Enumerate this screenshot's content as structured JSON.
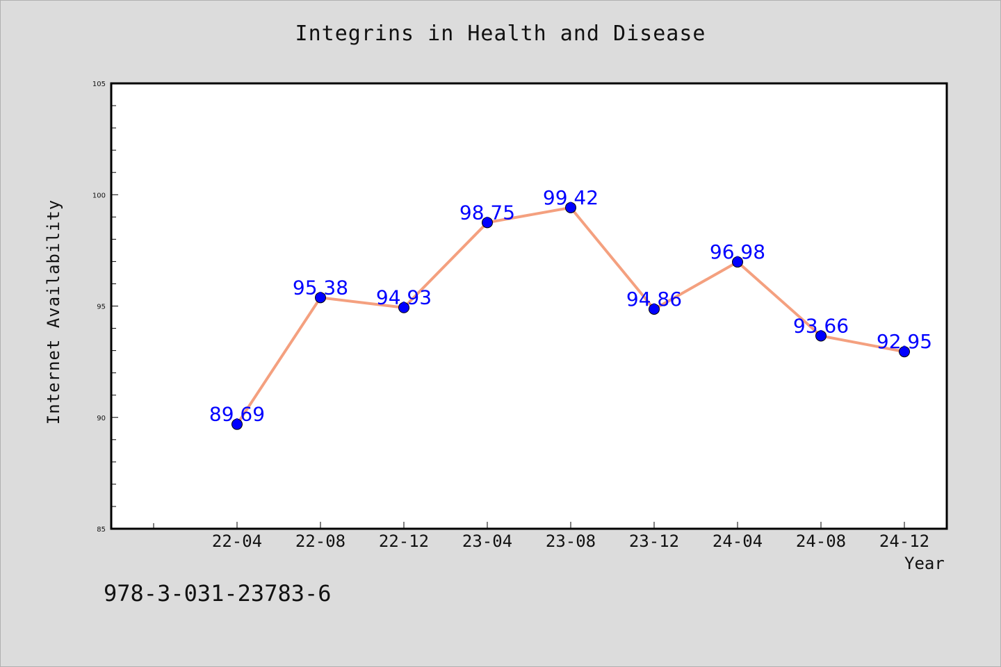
{
  "chart_data": {
    "type": "line",
    "title": "Integrins in Health and Disease",
    "xlabel": "Year",
    "ylabel": "Internet Availability",
    "categories": [
      "22-04",
      "22-08",
      "22-12",
      "23-04",
      "23-08",
      "23-12",
      "24-04",
      "24-08",
      "24-12"
    ],
    "series": [
      {
        "values": [
          89.69,
          95.38,
          94.93,
          98.75,
          99.42,
          94.86,
          96.98,
          93.66,
          92.95
        ]
      }
    ],
    "data_labels": [
      "89.69",
      "95.38",
      "94.93",
      "98.75",
      "99.42",
      "94.86",
      "96.98",
      "93.66",
      "92.95"
    ],
    "ylim": [
      85,
      105
    ],
    "yticks": [
      85,
      90,
      95,
      100,
      105
    ],
    "grid": false,
    "colors": {
      "line": "#f4a07f",
      "marker": "#0000ff",
      "label": "#0000ff",
      "background": "#dcdcdc",
      "plot": "#ffffff"
    }
  },
  "footer": {
    "identifier": "978-3-031-23783-6"
  }
}
